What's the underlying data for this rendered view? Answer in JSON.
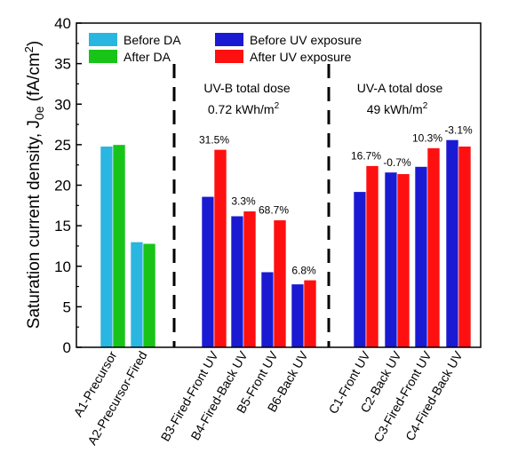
{
  "chart_data": {
    "type": "bar",
    "ylabel_main": "Saturation current density, J",
    "ylabel_sub": "0e",
    "ylabel_unit": " (fA/cm",
    "ylabel_unit_sup": "2",
    "ylabel_close": ")",
    "ylim": [
      0,
      40
    ],
    "yticks": [
      "0",
      "5",
      "10",
      "15",
      "20",
      "25",
      "30",
      "35",
      "40"
    ],
    "ytick_values": [
      0,
      5,
      10,
      15,
      20,
      25,
      30,
      35,
      40
    ],
    "categories": [
      "A1-Precursor",
      "A2-Precursor-Fired",
      "B3-Fired-Front UV",
      "B4-Fired-Back UV",
      "B5-Front UV",
      "B6-Back UV",
      "C1-Front UV",
      "C2-Back UV",
      "C3-Fired-Front UV",
      "C4-Fired-Back UV"
    ],
    "series": [
      {
        "name": "Before DA",
        "color": "#29b6e0",
        "values": [
          24.8,
          13.0,
          null,
          null,
          null,
          null,
          null,
          null,
          null,
          null
        ]
      },
      {
        "name": "After DA",
        "color": "#18c418",
        "values": [
          25.0,
          12.8,
          null,
          null,
          null,
          null,
          null,
          null,
          null,
          null
        ]
      },
      {
        "name": "Before UV exposure",
        "color": "#1a1ad2",
        "values": [
          null,
          null,
          18.6,
          16.2,
          9.3,
          7.8,
          19.2,
          21.6,
          22.3,
          25.6
        ]
      },
      {
        "name": "After UV exposure",
        "color": "#ff1010",
        "values": [
          null,
          null,
          24.4,
          16.8,
          15.7,
          8.3,
          22.4,
          21.4,
          24.6,
          24.8
        ]
      }
    ],
    "annotations": [
      "",
      "",
      "31.5%",
      "3.3%",
      "68.7%",
      "6.8%",
      "16.7%",
      "-0.7%",
      "10.3%",
      "-3.1%"
    ],
    "dose_groups": [
      {
        "line1": "UV-B total dose",
        "line2": "0.72 kWh/m",
        "sup": "2"
      },
      {
        "line1": "UV-A total dose",
        "line2": "49 kWh/m",
        "sup": "2"
      }
    ],
    "legend_placement": "top"
  }
}
